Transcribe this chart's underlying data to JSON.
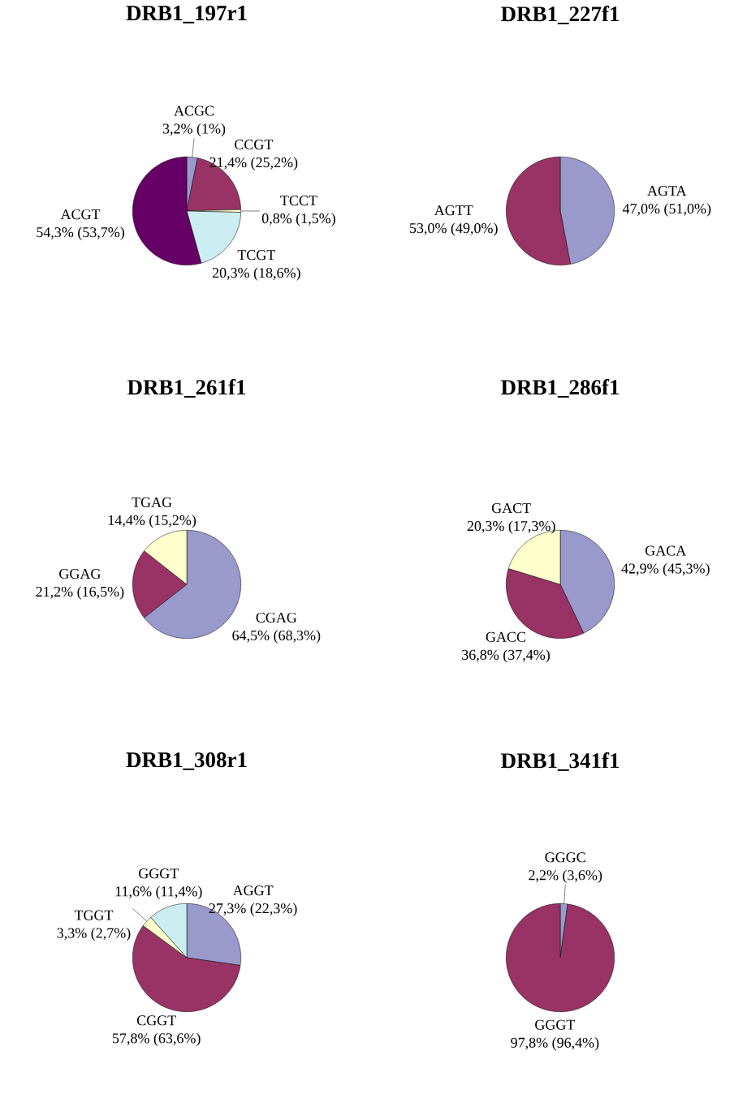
{
  "chart_data": [
    {
      "type": "pie",
      "title": "DRB1_197r1",
      "categories": [
        "ACGC",
        "CCGT",
        "TCCT",
        "TCGT",
        "ACGT"
      ],
      "values": [
        3.2,
        21.4,
        0.8,
        20.3,
        54.3
      ],
      "colors": [
        "#9999cc",
        "#993366",
        "#ffffcc",
        "#cceef2",
        "#660066"
      ],
      "value_labels": [
        "3,2% (1%)",
        "21,4% (25,2%)",
        "0,8% (1,5%)",
        "20,3% (18,6%)",
        "54,3% (53,7%)"
      ]
    },
    {
      "type": "pie",
      "title": "DRB1_227f1",
      "categories": [
        "AGTA",
        "AGTT"
      ],
      "values": [
        47.0,
        53.0
      ],
      "colors": [
        "#9999cc",
        "#993366"
      ],
      "value_labels": [
        "47,0% (51,0%)",
        "53,0% (49,0%)"
      ]
    },
    {
      "type": "pie",
      "title": "DRB1_261f1",
      "categories": [
        "CGAG",
        "GGAG",
        "TGAG"
      ],
      "values": [
        64.5,
        21.2,
        14.4
      ],
      "colors": [
        "#9999cc",
        "#993366",
        "#ffffcc"
      ],
      "value_labels": [
        "64,5% (68,3%)",
        "21,2% (16,5%)",
        "14,4% (15,2%)"
      ]
    },
    {
      "type": "pie",
      "title": "DRB1_286f1",
      "categories": [
        "GACA",
        "GACC",
        "GACT"
      ],
      "values": [
        42.9,
        36.8,
        20.3
      ],
      "colors": [
        "#9999cc",
        "#993366",
        "#ffffcc"
      ],
      "value_labels": [
        "42,9% (45,3%)",
        "36,8% (37,4%)",
        "20,3% (17,3%)"
      ]
    },
    {
      "type": "pie",
      "title": "DRB1_308r1",
      "categories": [
        "AGGT",
        "CGGT",
        "TGGT",
        "GGGT"
      ],
      "values": [
        27.3,
        57.8,
        3.3,
        11.6
      ],
      "colors": [
        "#9999cc",
        "#993366",
        "#ffffcc",
        "#cceef2"
      ],
      "value_labels": [
        "27,3% (22,3%)",
        "57,8% (63,6%)",
        "3,3% (2,7%)",
        "11,6% (11,4%)"
      ]
    },
    {
      "type": "pie",
      "title": "DRB1_341f1",
      "categories": [
        "GGGC",
        "GGGT"
      ],
      "values": [
        2.2,
        97.8
      ],
      "colors": [
        "#9999cc",
        "#993366"
      ],
      "value_labels": [
        "2,2% (3,6%)",
        "97,8% (96,4%)"
      ]
    }
  ]
}
